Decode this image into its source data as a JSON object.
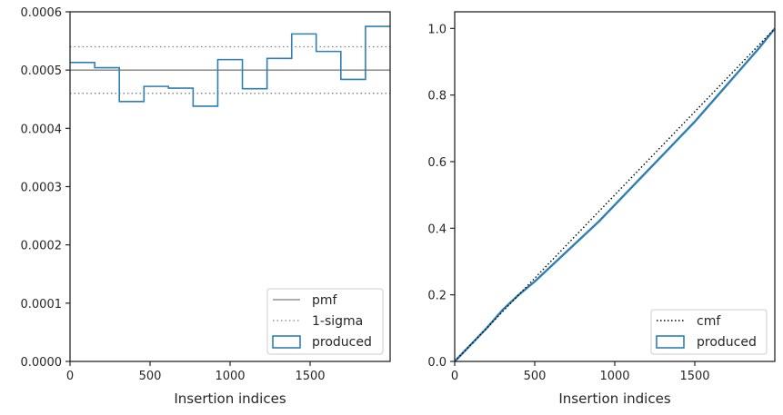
{
  "colors": {
    "series": "#2e7fb4",
    "reference": "#7f7f7f",
    "cmf": "#000000",
    "axis": "#262626"
  },
  "chart_data": [
    {
      "type": "histogram",
      "xlabel": "Insertion indices",
      "ylabel": "",
      "xlim": [
        0,
        2000
      ],
      "ylim": [
        0,
        0.0006
      ],
      "xticks": [
        0,
        500,
        1000,
        1500
      ],
      "xtick_labels": [
        "0",
        "500",
        "1000",
        "1500"
      ],
      "yticks": [
        0,
        0.0001,
        0.0002,
        0.0003,
        0.0004,
        0.0005,
        0.0006
      ],
      "ytick_labels": [
        "0.0000",
        "0.0001",
        "0.0002",
        "0.0003",
        "0.0004",
        "0.0005",
        "0.0006"
      ],
      "pmf": 0.0005,
      "sigma_band": [
        0.00046,
        0.00054
      ],
      "bin_edges": [
        0,
        154,
        308,
        462,
        615,
        769,
        923,
        1077,
        1231,
        1385,
        1538,
        1692,
        1846,
        2000
      ],
      "values": [
        0.000513,
        0.000504,
        0.000446,
        0.000472,
        0.000469,
        0.000438,
        0.000518,
        0.000468,
        0.00052,
        0.000562,
        0.000532,
        0.000484,
        0.000575
      ],
      "legend": {
        "position": "lower right",
        "entries": [
          "pmf",
          "1-sigma",
          "produced"
        ]
      },
      "grid": false
    },
    {
      "type": "line",
      "xlabel": "Insertion indices",
      "ylabel": "",
      "xlim": [
        0,
        2000
      ],
      "ylim": [
        0,
        1.05
      ],
      "xticks": [
        0,
        500,
        1000,
        1500
      ],
      "xtick_labels": [
        "0",
        "500",
        "1000",
        "1500"
      ],
      "yticks": [
        0,
        0.2,
        0.4,
        0.6,
        0.8,
        1.0
      ],
      "ytick_labels": [
        "0.0",
        "0.2",
        "0.4",
        "0.6",
        "0.8",
        "1.0"
      ],
      "cmf": {
        "x": [
          0,
          2000
        ],
        "y": [
          0,
          1.0
        ]
      },
      "produced": {
        "x": [
          0,
          100,
          200,
          300,
          400,
          500,
          600,
          700,
          800,
          900,
          1000,
          1100,
          1200,
          1300,
          1400,
          1500,
          1600,
          1700,
          1800,
          1900,
          2000
        ],
        "y": [
          0,
          0.05,
          0.1,
          0.155,
          0.2,
          0.24,
          0.285,
          0.33,
          0.375,
          0.42,
          0.47,
          0.52,
          0.57,
          0.62,
          0.67,
          0.72,
          0.775,
          0.83,
          0.885,
          0.94,
          1.0
        ]
      },
      "legend": {
        "position": "lower right",
        "entries": [
          "cmf",
          "produced"
        ]
      },
      "grid": false
    }
  ]
}
